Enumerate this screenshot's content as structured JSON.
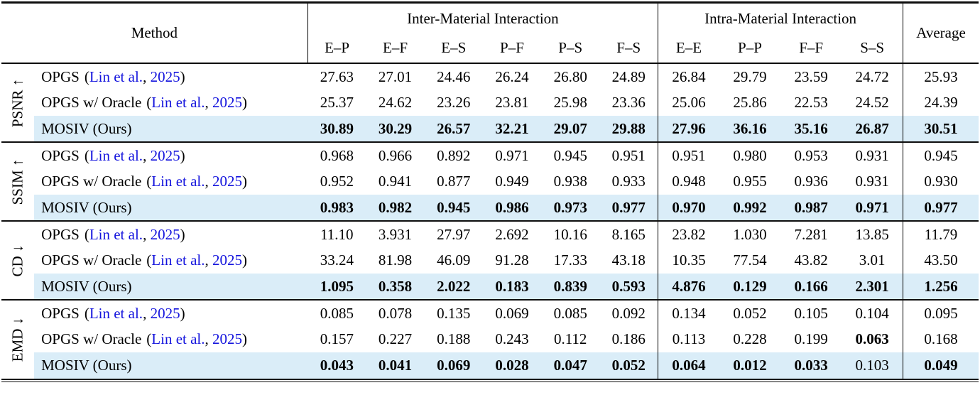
{
  "colors": {
    "highlight": "#daedf8",
    "citation": "#1414dd",
    "rule": "#0e0e0e"
  },
  "cite_format": {
    "open": "(",
    "sep": ", ",
    "close": ")"
  },
  "table": {
    "header": {
      "method": "Method",
      "groups": [
        {
          "label": "Inter-Material Interaction",
          "columns": [
            "E–P",
            "E–F",
            "E–S",
            "P–F",
            "P–S",
            "F–S"
          ]
        },
        {
          "label": "Intra-Material Interaction",
          "columns": [
            "E–E",
            "P–P",
            "F–F",
            "S–S"
          ]
        }
      ],
      "average": "Average"
    },
    "sections": [
      {
        "metric": "PSNR ↑",
        "rows": [
          {
            "label": "OPGS",
            "cite_authors": "Lin et al.",
            "cite_year": "2025",
            "highlight": false,
            "values": [
              "27.63",
              "27.01",
              "24.46",
              "26.24",
              "26.80",
              "24.89",
              "26.84",
              "29.79",
              "23.59",
              "24.72"
            ],
            "average": "25.93",
            "bold_cols": [],
            "bold_avg": false
          },
          {
            "label": "OPGS w/ Oracle",
            "cite_authors": "Lin et al.",
            "cite_year": "2025",
            "highlight": false,
            "values": [
              "25.37",
              "24.62",
              "23.26",
              "23.81",
              "25.98",
              "23.36",
              "25.06",
              "25.86",
              "22.53",
              "24.52"
            ],
            "average": "24.39",
            "bold_cols": [],
            "bold_avg": false
          },
          {
            "label": "MOSIV (Ours)",
            "cite_authors": null,
            "cite_year": null,
            "highlight": true,
            "values": [
              "30.89",
              "30.29",
              "26.57",
              "32.21",
              "29.07",
              "29.88",
              "27.96",
              "36.16",
              "35.16",
              "26.87"
            ],
            "average": "30.51",
            "bold_cols": [
              0,
              1,
              2,
              3,
              4,
              5,
              6,
              7,
              8,
              9
            ],
            "bold_avg": true
          }
        ]
      },
      {
        "metric": "SSIM ↑",
        "rows": [
          {
            "label": "OPGS",
            "cite_authors": "Lin et al.",
            "cite_year": "2025",
            "highlight": false,
            "values": [
              "0.968",
              "0.966",
              "0.892",
              "0.971",
              "0.945",
              "0.951",
              "0.951",
              "0.980",
              "0.953",
              "0.931"
            ],
            "average": "0.945",
            "bold_cols": [],
            "bold_avg": false
          },
          {
            "label": "OPGS w/ Oracle",
            "cite_authors": "Lin et al.",
            "cite_year": "2025",
            "highlight": false,
            "values": [
              "0.952",
              "0.941",
              "0.877",
              "0.949",
              "0.938",
              "0.933",
              "0.948",
              "0.955",
              "0.936",
              "0.931"
            ],
            "average": "0.930",
            "bold_cols": [],
            "bold_avg": false
          },
          {
            "label": "MOSIV (Ours)",
            "cite_authors": null,
            "cite_year": null,
            "highlight": true,
            "values": [
              "0.983",
              "0.982",
              "0.945",
              "0.986",
              "0.973",
              "0.977",
              "0.970",
              "0.992",
              "0.987",
              "0.971"
            ],
            "average": "0.977",
            "bold_cols": [
              0,
              1,
              2,
              3,
              4,
              5,
              6,
              7,
              8,
              9
            ],
            "bold_avg": true
          }
        ]
      },
      {
        "metric": "CD ↓",
        "rows": [
          {
            "label": "OPGS",
            "cite_authors": "Lin et al.",
            "cite_year": "2025",
            "highlight": false,
            "values": [
              "11.10",
              "3.931",
              "27.97",
              "2.692",
              "10.16",
              "8.165",
              "23.82",
              "1.030",
              "7.281",
              "13.85"
            ],
            "average": "11.79",
            "bold_cols": [],
            "bold_avg": false
          },
          {
            "label": "OPGS w/ Oracle",
            "cite_authors": "Lin et al.",
            "cite_year": "2025",
            "highlight": false,
            "values": [
              "33.24",
              "81.98",
              "46.09",
              "91.28",
              "17.33",
              "43.18",
              "10.35",
              "77.54",
              "43.82",
              "3.01"
            ],
            "average": "43.50",
            "bold_cols": [],
            "bold_avg": false
          },
          {
            "label": "MOSIV (Ours)",
            "cite_authors": null,
            "cite_year": null,
            "highlight": true,
            "values": [
              "1.095",
              "0.358",
              "2.022",
              "0.183",
              "0.839",
              "0.593",
              "4.876",
              "0.129",
              "0.166",
              "2.301"
            ],
            "average": "1.256",
            "bold_cols": [
              0,
              1,
              2,
              3,
              4,
              5,
              6,
              7,
              8,
              9
            ],
            "bold_avg": true
          }
        ]
      },
      {
        "metric": "EMD ↓",
        "rows": [
          {
            "label": "OPGS",
            "cite_authors": "Lin et al.",
            "cite_year": "2025",
            "highlight": false,
            "values": [
              "0.085",
              "0.078",
              "0.135",
              "0.069",
              "0.085",
              "0.092",
              "0.134",
              "0.052",
              "0.105",
              "0.104"
            ],
            "average": "0.095",
            "bold_cols": [],
            "bold_avg": false
          },
          {
            "label": "OPGS w/ Oracle",
            "cite_authors": "Lin et al.",
            "cite_year": "2025",
            "highlight": false,
            "values": [
              "0.157",
              "0.227",
              "0.188",
              "0.243",
              "0.112",
              "0.186",
              "0.113",
              "0.228",
              "0.199",
              "0.063"
            ],
            "average": "0.168",
            "bold_cols": [
              9
            ],
            "bold_avg": false
          },
          {
            "label": "MOSIV (Ours)",
            "cite_authors": null,
            "cite_year": null,
            "highlight": true,
            "values": [
              "0.043",
              "0.041",
              "0.069",
              "0.028",
              "0.047",
              "0.052",
              "0.064",
              "0.012",
              "0.033",
              "0.103"
            ],
            "average": "0.049",
            "bold_cols": [
              0,
              1,
              2,
              3,
              4,
              5,
              6,
              7,
              8
            ],
            "bold_avg": true
          }
        ]
      }
    ]
  }
}
